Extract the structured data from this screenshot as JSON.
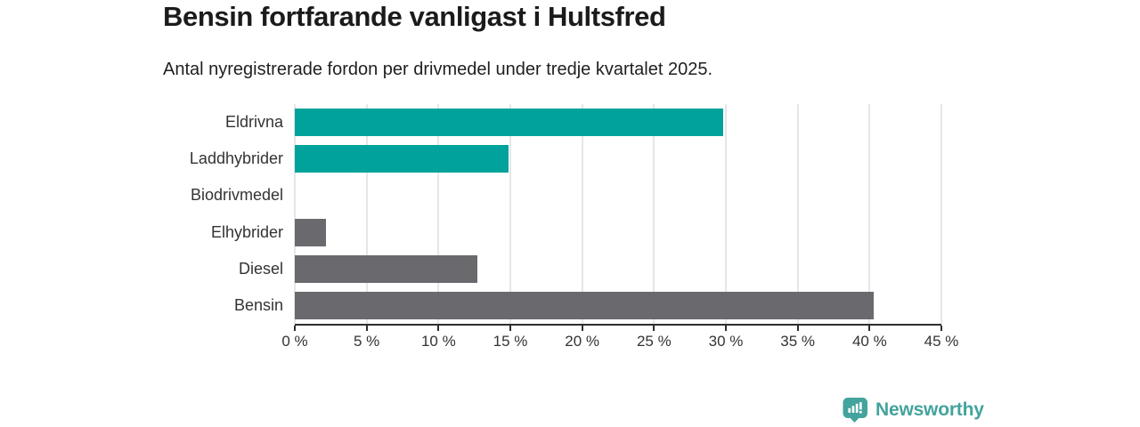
{
  "header": {
    "title": "Bensin fortfarande vanligast i Hultsfred",
    "subtitle": "Antal nyregistrerade fordon per drivmedel under tredje kvartalet 2025."
  },
  "chart_data": {
    "type": "bar",
    "orientation": "horizontal",
    "title": "Bensin fortfarande vanligast i Hultsfred",
    "subtitle": "Antal nyregistrerade fordon per drivmedel under tredje kvartalet 2025.",
    "categories": [
      "Eldrivna",
      "Laddhybrider",
      "Biodrivmedel",
      "Elhybrider",
      "Diesel",
      "Bensin"
    ],
    "values": [
      29.8,
      14.9,
      0,
      2.2,
      12.7,
      40.3
    ],
    "unit": "%",
    "bar_colors": [
      "#00a29b",
      "#00a29b",
      "#6a6a6e",
      "#6a6a6e",
      "#6a6a6e",
      "#6a6a6e"
    ],
    "xlim": [
      0,
      45
    ],
    "x_ticks": [
      0,
      5,
      10,
      15,
      20,
      25,
      30,
      35,
      40,
      45
    ],
    "x_tick_labels": [
      "0 %",
      "5 %",
      "10 %",
      "15 %",
      "20 %",
      "25 %",
      "30 %",
      "35 %",
      "40 %",
      "45 %"
    ],
    "xlabel": "",
    "ylabel": "",
    "grid": "vertical",
    "legend": "none"
  },
  "colors": {
    "accent_teal": "#00a29b",
    "bar_gray": "#6a6a6e",
    "axis": "#2e2e2e",
    "gridline": "#e6e6e6",
    "brand_teal": "#43a39d",
    "title_text": "#1b1b1b"
  },
  "footer": {
    "brand": "Newsworthy"
  }
}
